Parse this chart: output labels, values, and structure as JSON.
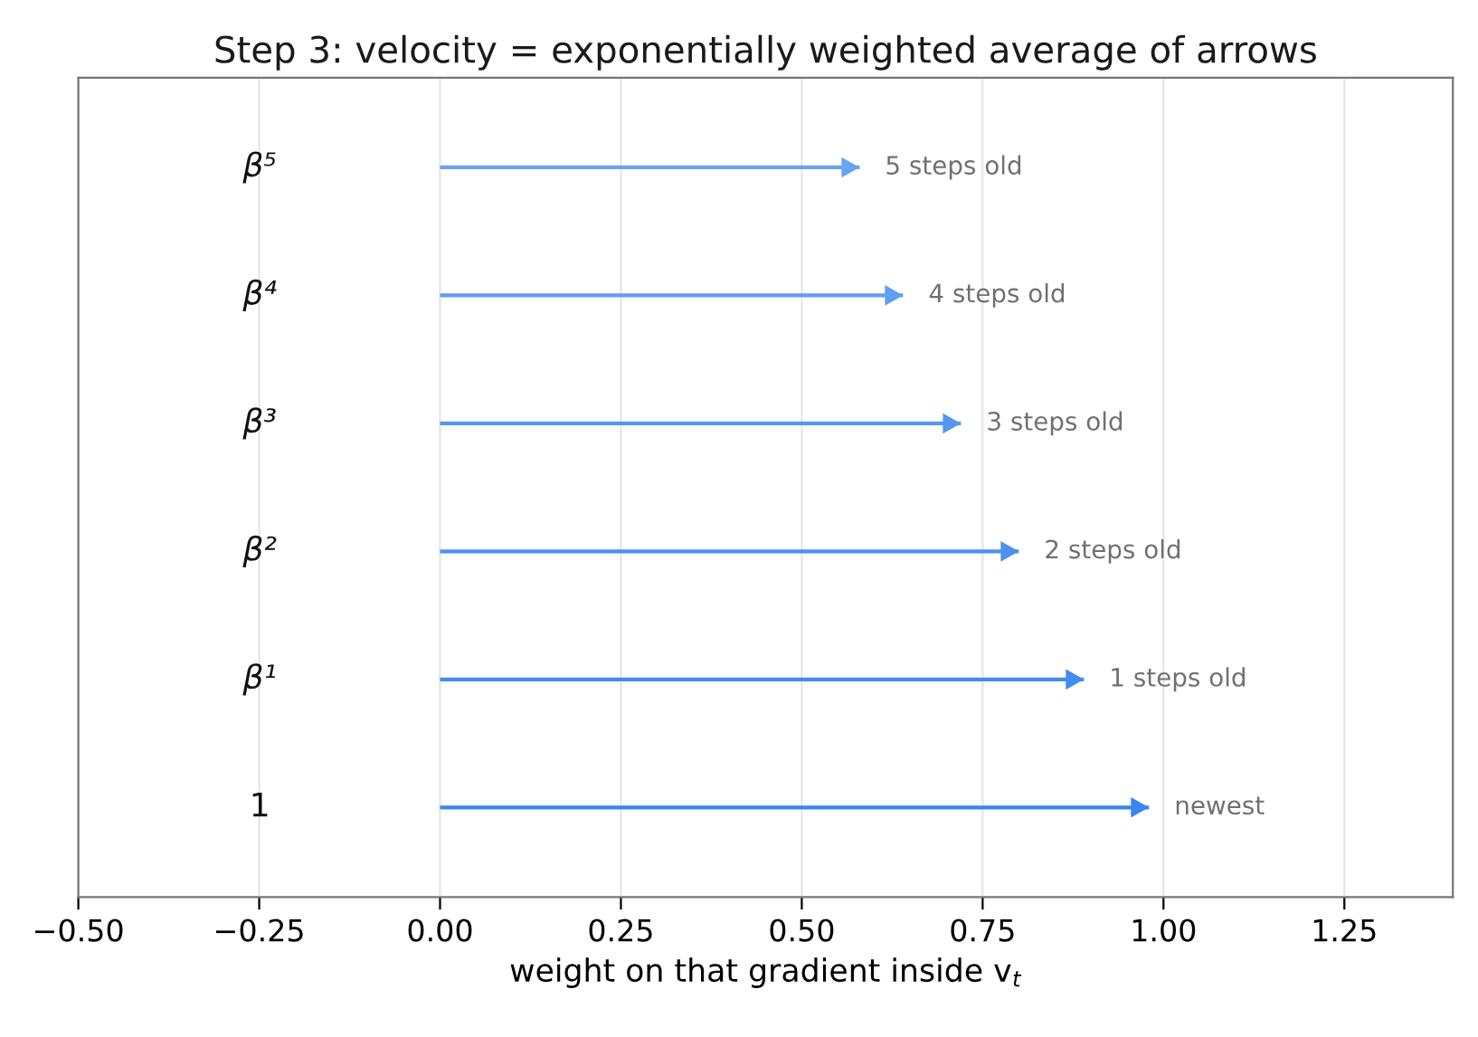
{
  "chart_data": {
    "type": "bar",
    "orientation": "horizontal",
    "title": "Step 3: velocity = exponentially weighted average of arrows",
    "xlabel": "weight on that gradient inside v$_{t}$",
    "categories": [
      "β⁵",
      "β⁴",
      "β³",
      "β²",
      "β¹",
      "1"
    ],
    "values": [
      0.58,
      0.64,
      0.72,
      0.8,
      0.89,
      0.98
    ],
    "colors": [
      "#68a4ef",
      "#5f9ef0",
      "#5597f0",
      "#4c91f0",
      "#438bf0",
      "#3b85f0"
    ],
    "annotations": [
      {
        "text": "5 steps old",
        "x": 0.58,
        "y": "β⁵"
      },
      {
        "text": "4 steps old",
        "x": 0.64,
        "y": "β⁴"
      },
      {
        "text": "3 steps old",
        "x": 0.72,
        "y": "β³"
      },
      {
        "text": "2 steps old",
        "x": 0.8,
        "y": "β²"
      },
      {
        "text": "1 steps old",
        "x": 0.89,
        "y": "β¹"
      },
      {
        "text": "newest",
        "x": 0.98,
        "y": "1"
      }
    ],
    "xlim": [
      -0.5,
      1.4
    ],
    "xticks": [
      {
        "value": -0.5,
        "label": "−0.50"
      },
      {
        "value": -0.25,
        "label": "−0.25"
      },
      {
        "value": 0.0,
        "label": "0.00"
      },
      {
        "value": 0.25,
        "label": "0.25"
      },
      {
        "value": 0.5,
        "label": "0.50"
      },
      {
        "value": 0.75,
        "label": "0.75"
      },
      {
        "value": 1.0,
        "label": "1.00"
      },
      {
        "value": 1.25,
        "label": "1.25"
      }
    ],
    "grid": "x",
    "tick_labels": "x"
  }
}
